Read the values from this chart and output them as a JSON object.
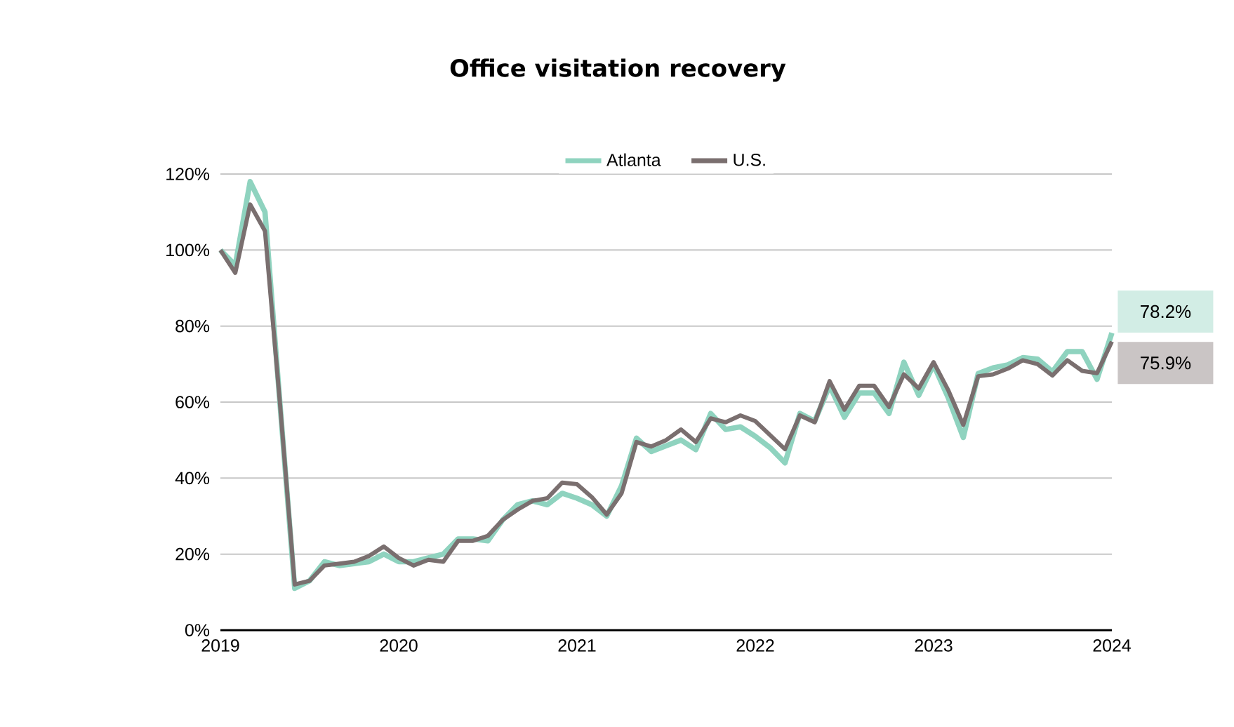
{
  "chart_data": {
    "type": "line",
    "title": "Office visitation recovery",
    "x": [
      "2019-01",
      "2019-02",
      "2019-03",
      "2019-04",
      "2019-05",
      "2019-06",
      "2019-07",
      "2019-08",
      "2019-09",
      "2019-10",
      "2019-11",
      "2019-12",
      "2020-01",
      "2020-02",
      "2020-03",
      "2020-04",
      "2020-05",
      "2020-06",
      "2020-07",
      "2020-08",
      "2020-09",
      "2020-10",
      "2020-11",
      "2020-12",
      "2021-01",
      "2021-02",
      "2021-03",
      "2021-04",
      "2021-05",
      "2021-06",
      "2021-07",
      "2021-08",
      "2021-09",
      "2021-10",
      "2021-11",
      "2021-12",
      "2022-01",
      "2022-02",
      "2022-03",
      "2022-04",
      "2022-05",
      "2022-06",
      "2022-07",
      "2022-08",
      "2022-09",
      "2022-10",
      "2022-11",
      "2022-12",
      "2023-01",
      "2023-02",
      "2023-03",
      "2023-04",
      "2023-05",
      "2023-06",
      "2023-07",
      "2023-08",
      "2023-09",
      "2023-10",
      "2023-11",
      "2023-12",
      "2024-01"
    ],
    "series": [
      {
        "name": "Atlanta",
        "color": "#8fd3bf",
        "values": [
          100,
          96,
          118,
          110,
          60,
          11,
          13,
          18,
          17,
          17.5,
          18,
          20,
          18,
          18,
          19,
          20,
          24,
          24,
          23.5,
          29,
          33,
          34,
          33,
          36,
          34.7,
          33,
          30,
          38,
          50.5,
          47,
          48.5,
          50,
          47.5,
          57,
          52.8,
          53.5,
          51,
          48,
          44,
          57,
          55,
          64.3,
          56,
          62.4,
          62.4,
          57,
          70.5,
          61.8,
          69.8,
          61,
          50.7,
          67.5,
          69,
          69.8,
          71.7,
          71.3,
          68,
          73.3,
          73.3,
          66,
          78.2
        ],
        "value_labels": [
          null,
          null,
          null,
          null,
          null,
          null,
          null,
          null,
          null,
          null,
          null,
          null,
          null,
          null,
          null,
          null,
          null,
          null,
          null,
          null,
          null,
          null,
          null,
          null,
          null,
          null,
          null,
          null,
          null,
          null,
          null,
          null,
          null,
          null,
          null,
          null,
          null,
          null,
          null,
          null,
          null,
          null,
          null,
          null,
          null,
          null,
          null,
          null,
          null,
          null,
          null,
          null,
          null,
          null,
          null,
          null,
          null,
          null,
          null,
          null,
          "78.2%"
        ]
      },
      {
        "name": "U.S.",
        "color": "#7a6f6f",
        "values": [
          100,
          94,
          112,
          105,
          60,
          12,
          13,
          17,
          17.5,
          18,
          19.5,
          22,
          19,
          17,
          18.5,
          18,
          23.5,
          23.5,
          24.8,
          29,
          31.7,
          34,
          34.7,
          38.8,
          38.4,
          35,
          30.4,
          36,
          49.5,
          48.3,
          50,
          52.8,
          49.5,
          55.7,
          54.7,
          56.5,
          55,
          51.3,
          47.6,
          56.5,
          54.7,
          65.5,
          58,
          64.3,
          64.3,
          58.7,
          67.3,
          63.6,
          70.5,
          63,
          54,
          66.8,
          67.3,
          68.8,
          71,
          70,
          67,
          71,
          68.2,
          67.6,
          75.9
        ],
        "value_labels": [
          null,
          null,
          null,
          null,
          null,
          null,
          null,
          null,
          null,
          null,
          null,
          null,
          null,
          null,
          null,
          null,
          null,
          null,
          null,
          null,
          null,
          null,
          null,
          null,
          null,
          null,
          null,
          null,
          null,
          null,
          null,
          null,
          null,
          null,
          null,
          null,
          null,
          null,
          null,
          null,
          null,
          null,
          null,
          null,
          null,
          null,
          null,
          null,
          null,
          null,
          null,
          null,
          null,
          null,
          null,
          null,
          null,
          null,
          null,
          null,
          "75.9%"
        ]
      }
    ],
    "xlim": [
      "2019-01",
      "2024-01"
    ],
    "xticks": [
      "2019",
      "2020",
      "2021",
      "2022",
      "2023",
      "2024"
    ],
    "ylim": [
      0,
      120
    ],
    "yticks": [
      {
        "value": 0,
        "label": "0%"
      },
      {
        "value": 20,
        "label": "20%"
      },
      {
        "value": 40,
        "label": "40%"
      },
      {
        "value": 60,
        "label": "60%"
      },
      {
        "value": 80,
        "label": "80%"
      },
      {
        "value": 100,
        "label": "100%"
      },
      {
        "value": 120,
        "label": "120%"
      }
    ],
    "grid": "y",
    "legend": "top",
    "marker": "none"
  }
}
